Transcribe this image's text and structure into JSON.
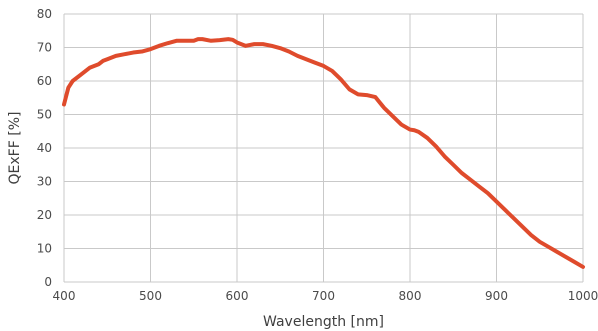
{
  "chart_data": {
    "type": "line",
    "xlabel": "Wavelength [nm]",
    "ylabel": "QExFF [%]",
    "xlim": [
      400,
      1000
    ],
    "ylim": [
      0,
      80
    ],
    "x_ticks": [
      400,
      500,
      600,
      700,
      800,
      900,
      1000
    ],
    "y_ticks": [
      0,
      10,
      20,
      30,
      40,
      50,
      60,
      70,
      80
    ],
    "grid": true,
    "series": [
      {
        "color": "#df4b2c",
        "x": [
          400,
          402,
          405,
          410,
          420,
          430,
          440,
          445,
          450,
          460,
          470,
          480,
          490,
          500,
          510,
          520,
          530,
          540,
          550,
          555,
          560,
          570,
          580,
          590,
          595,
          600,
          610,
          620,
          630,
          640,
          650,
          660,
          670,
          680,
          690,
          700,
          710,
          720,
          730,
          740,
          750,
          760,
          770,
          780,
          790,
          800,
          805,
          810,
          820,
          830,
          840,
          850,
          860,
          870,
          880,
          890,
          900,
          910,
          920,
          930,
          940,
          950,
          960,
          970,
          980,
          990,
          1000
        ],
        "y": [
          53,
          55,
          58,
          60,
          62,
          64,
          65,
          66,
          66.5,
          67.5,
          68,
          68.5,
          68.8,
          69.5,
          70.5,
          71.3,
          72,
          72,
          72,
          72.5,
          72.5,
          72,
          72.2,
          72.5,
          72.3,
          71.5,
          70.5,
          71,
          71,
          70.5,
          69.8,
          68.8,
          67.5,
          66.5,
          65.5,
          64.5,
          63,
          60.5,
          57.5,
          56,
          55.8,
          55.2,
          52,
          49.5,
          47,
          45.5,
          45.3,
          44.8,
          43,
          40.5,
          37.5,
          35,
          32.5,
          30.5,
          28.5,
          26.5,
          24,
          21.5,
          19,
          16.5,
          14,
          12,
          10.5,
          9,
          7.5,
          6,
          4.5
        ]
      }
    ]
  }
}
